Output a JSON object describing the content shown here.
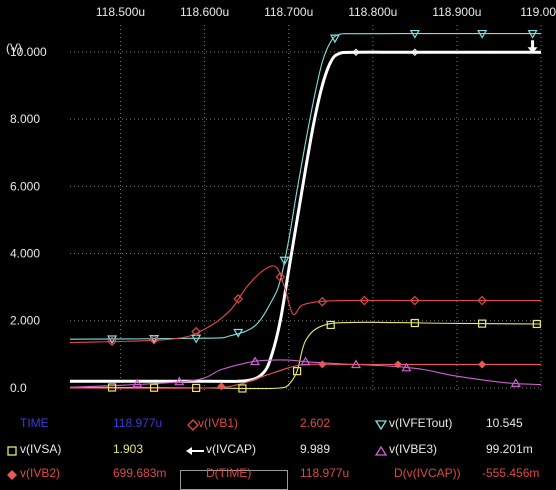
{
  "chart_data": {
    "type": "line",
    "x_unit_suffix": "u",
    "y_unit_label": "(V)",
    "x_ticks": [
      "118.500u",
      "118.600u",
      "118.700u",
      "118.800u",
      "118.900u",
      "119.00"
    ],
    "x_tick_values": [
      118.5,
      118.6,
      118.7,
      118.8,
      118.9,
      119.0
    ],
    "y_ticks": [
      "0.0",
      "2.000",
      "4.000",
      "6.000",
      "8.000",
      "10.000"
    ],
    "y_tick_values": [
      0,
      2,
      4,
      6,
      8,
      10
    ],
    "xlim": [
      118.44,
      119.0
    ],
    "ylim": [
      -0.15,
      10.8
    ],
    "grid": true,
    "series": [
      {
        "name": "v(IVFETout)",
        "color": "#7ee0e0",
        "marker": "triangle-down",
        "x": [
          118.44,
          118.6,
          118.63,
          118.66,
          118.68,
          118.69,
          118.7,
          118.71,
          118.72,
          118.73,
          118.74,
          118.75,
          118.76,
          118.78,
          118.85,
          118.93,
          119.0
        ],
        "y": [
          1.45,
          1.48,
          1.55,
          1.85,
          2.6,
          3.2,
          4.4,
          5.9,
          7.3,
          8.6,
          9.7,
          10.3,
          10.52,
          10.54,
          10.545,
          10.545,
          10.545
        ]
      },
      {
        "name": "v(IVCAP)",
        "color": "#ffffff",
        "marker": "arrow",
        "x": [
          118.44,
          118.6,
          118.65,
          118.67,
          118.68,
          118.69,
          118.7,
          118.71,
          118.72,
          118.73,
          118.74,
          118.75,
          118.76,
          118.78,
          118.85,
          118.93,
          119.0
        ],
        "y": [
          0.2,
          0.2,
          0.22,
          0.45,
          1.0,
          2.0,
          3.5,
          5.0,
          6.5,
          7.9,
          9.0,
          9.7,
          9.95,
          9.989,
          9.989,
          9.989,
          9.989
        ]
      },
      {
        "name": "v(IVB1)",
        "color": "#e04848",
        "marker": "diamond-open",
        "x": [
          118.44,
          118.56,
          118.6,
          118.63,
          118.65,
          118.67,
          118.685,
          118.695,
          118.705,
          118.715,
          118.73,
          118.76,
          118.85,
          119.0
        ],
        "y": [
          1.35,
          1.45,
          1.75,
          2.3,
          3.0,
          3.5,
          3.6,
          3.0,
          2.2,
          2.45,
          2.55,
          2.6,
          2.602,
          2.602
        ]
      },
      {
        "name": "v(IVSA)",
        "color": "#e8e870",
        "marker": "square-open",
        "x": [
          118.44,
          118.6,
          118.66,
          118.69,
          118.7,
          118.71,
          118.72,
          118.74,
          118.78,
          118.9,
          119.0
        ],
        "y": [
          0.02,
          0.0,
          -0.02,
          0.0,
          0.1,
          0.5,
          1.4,
          1.85,
          1.95,
          1.92,
          1.903
        ]
      },
      {
        "name": "v(IVBE3)",
        "color": "#d060d0",
        "marker": "triangle-up",
        "x": [
          118.44,
          118.58,
          118.62,
          118.65,
          118.67,
          118.7,
          118.72,
          118.76,
          118.82,
          118.86,
          118.9,
          118.96,
          119.0
        ],
        "y": [
          0.02,
          0.2,
          0.55,
          0.75,
          0.82,
          0.83,
          0.78,
          0.72,
          0.65,
          0.55,
          0.35,
          0.15,
          0.099
        ]
      },
      {
        "name": "v(IVB2)",
        "color": "#e85858",
        "marker": "diamond-filled",
        "x": [
          118.44,
          118.6,
          118.64,
          118.67,
          118.7,
          118.72,
          118.76,
          118.85,
          119.0
        ],
        "y": [
          0.0,
          0.0,
          0.1,
          0.35,
          0.6,
          0.7,
          0.7,
          0.7,
          0.6997
        ]
      }
    ]
  },
  "legend": {
    "rows": [
      [
        {
          "name": "TIME",
          "name_color": "#3b3bd8",
          "value": "118.977u",
          "value_color": "#3b3bd8",
          "marker": "none"
        },
        {
          "name": "v(IVB1)",
          "name_color": "#e04848",
          "value": "2.602",
          "value_color": "#e04848",
          "marker": "diamond-open",
          "marker_color": "#e04848"
        },
        {
          "name": "v(IVFETout)",
          "name_color": "#e8e8e8",
          "value": "10.545",
          "value_color": "#e8e8e8",
          "marker": "triangle-down",
          "marker_color": "#7ee0e0"
        }
      ],
      [
        {
          "name": "v(IVSA)",
          "name_color": "#e8e8e8",
          "value": "1.903",
          "value_color": "#e8e870",
          "marker": "square-open",
          "marker_color": "#e8e870"
        },
        {
          "name": "v(IVCAP)",
          "name_color": "#e8e8e8",
          "value": "9.989",
          "value_color": "#e8e8e8",
          "marker": "arrow",
          "marker_color": "#ffffff",
          "selected": true
        },
        {
          "name": "v(IVBE3)",
          "name_color": "#e8e8e8",
          "value": "99.201m",
          "value_color": "#e8e8e8",
          "marker": "triangle-up",
          "marker_color": "#d060d0"
        }
      ],
      [
        {
          "name": "v(IVB2)",
          "name_color": "#e04848",
          "value": "699.683m",
          "value_color": "#e04848",
          "marker": "diamond-filled",
          "marker_color": "#e85858"
        },
        {
          "name": "D(TIME)",
          "name_color": "#e04848",
          "value": "118.977u",
          "value_color": "#e04848",
          "marker": "none"
        },
        {
          "name": "D(v(IVCAP))",
          "name_color": "#e04848",
          "value": "-555.456m",
          "value_color": "#e04848",
          "marker": "none"
        }
      ]
    ]
  }
}
